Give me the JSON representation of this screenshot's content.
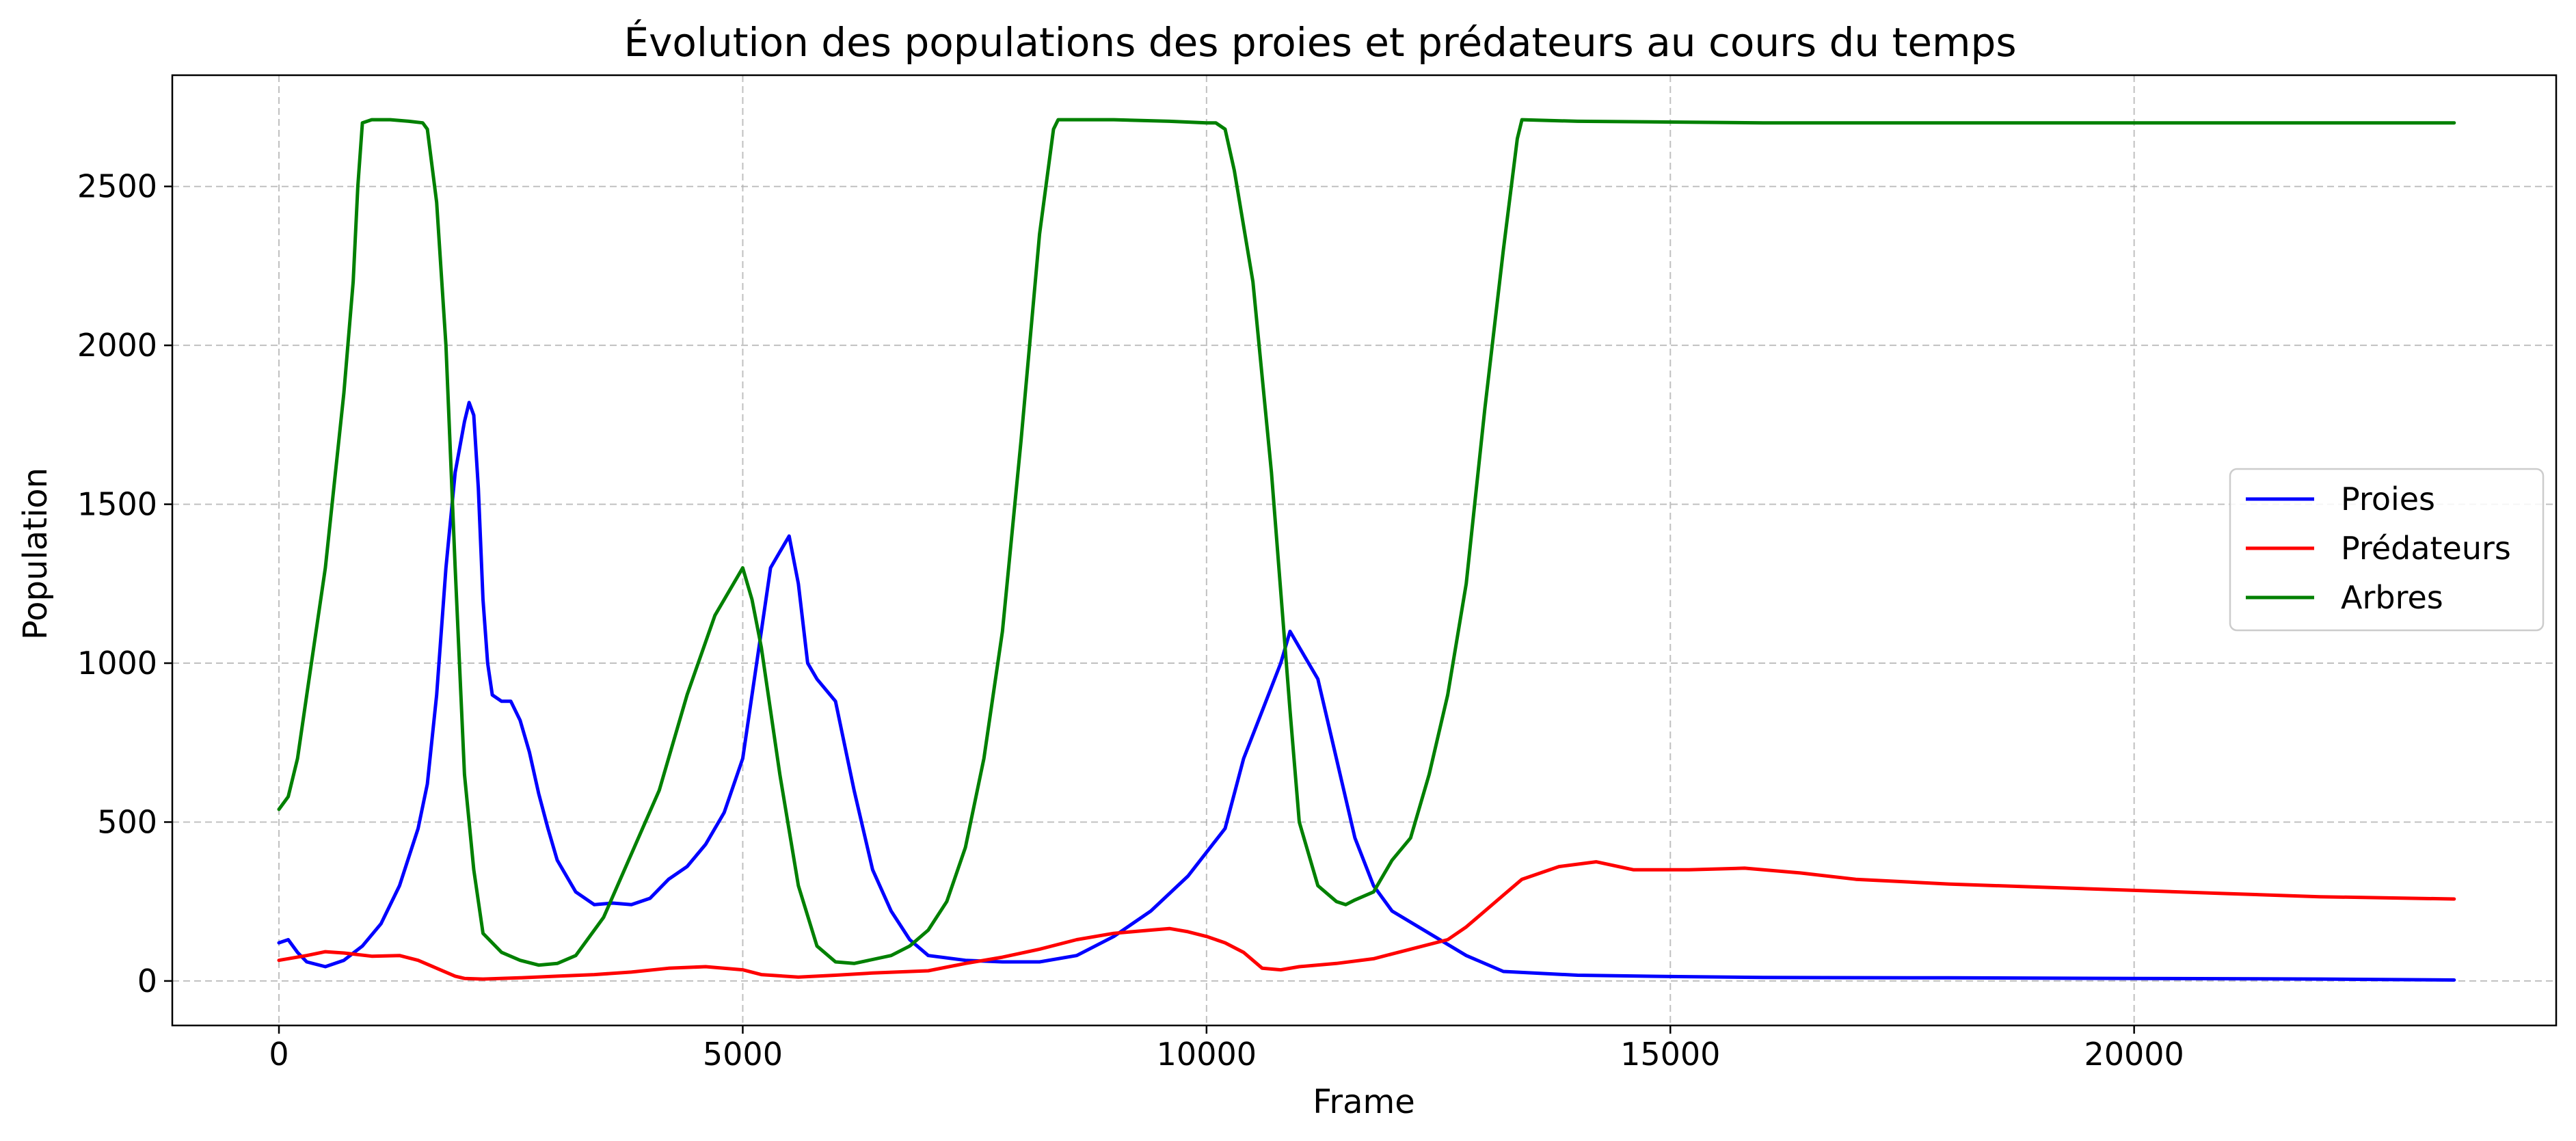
{
  "chart_data": {
    "type": "line",
    "title": "Évolution des populations des proies et prédateurs au cours du temps",
    "xlabel": "Frame",
    "ylabel": "Population",
    "xlim": [
      -1150,
      24550
    ],
    "ylim": [
      -140,
      2850
    ],
    "xticks": [
      0,
      5000,
      10000,
      15000,
      20000
    ],
    "yticks": [
      0,
      500,
      1000,
      1500,
      2000,
      2500
    ],
    "grid": true,
    "legend_position": "center-right",
    "series": [
      {
        "name": "Proies",
        "color": "#0000ff",
        "x": [
          0,
          100,
          200,
          300,
          500,
          700,
          900,
          1100,
          1300,
          1500,
          1600,
          1700,
          1800,
          1900,
          2000,
          2050,
          2100,
          2150,
          2200,
          2250,
          2300,
          2400,
          2500,
          2600,
          2700,
          2800,
          2900,
          3000,
          3200,
          3400,
          3600,
          3800,
          4000,
          4200,
          4400,
          4600,
          4800,
          5000,
          5100,
          5200,
          5300,
          5400,
          5500,
          5600,
          5700,
          5800,
          6000,
          6200,
          6400,
          6600,
          6800,
          7000,
          7400,
          7800,
          8200,
          8600,
          9000,
          9400,
          9800,
          10200,
          10400,
          10600,
          10800,
          10900,
          11000,
          11200,
          11400,
          11600,
          11800,
          12000,
          12400,
          12800,
          13200,
          14000,
          15000,
          16000,
          18000,
          20000,
          22000,
          23450
        ],
        "y": [
          120,
          130,
          90,
          60,
          45,
          65,
          110,
          180,
          300,
          480,
          620,
          900,
          1300,
          1600,
          1760,
          1820,
          1780,
          1550,
          1200,
          1000,
          900,
          880,
          880,
          820,
          720,
          590,
          480,
          380,
          280,
          240,
          245,
          240,
          260,
          320,
          360,
          430,
          530,
          700,
          900,
          1100,
          1300,
          1350,
          1400,
          1250,
          1000,
          950,
          880,
          600,
          350,
          220,
          130,
          80,
          65,
          60,
          60,
          80,
          140,
          220,
          330,
          480,
          700,
          850,
          1000,
          1100,
          1050,
          950,
          700,
          450,
          300,
          220,
          150,
          80,
          30,
          18,
          14,
          11,
          10,
          8,
          6,
          3
        ]
      },
      {
        "name": "Prédateurs",
        "color": "#ff0000",
        "x": [
          0,
          300,
          500,
          700,
          1000,
          1300,
          1500,
          1700,
          1900,
          2000,
          2200,
          2600,
          3000,
          3400,
          3800,
          4200,
          4600,
          5000,
          5200,
          5600,
          6000,
          6400,
          7000,
          7400,
          7800,
          8200,
          8600,
          9000,
          9400,
          9600,
          9800,
          10000,
          10200,
          10400,
          10600,
          10800,
          11000,
          11400,
          11800,
          12200,
          12600,
          12800,
          13000,
          13200,
          13400,
          13800,
          14200,
          14600,
          15200,
          15800,
          16400,
          17000,
          18000,
          19000,
          20000,
          21000,
          22000,
          23450
        ],
        "y": [
          65,
          80,
          92,
          88,
          78,
          80,
          65,
          40,
          15,
          8,
          6,
          10,
          15,
          20,
          28,
          40,
          45,
          35,
          20,
          12,
          18,
          25,
          32,
          55,
          75,
          100,
          130,
          150,
          160,
          165,
          155,
          140,
          120,
          90,
          40,
          35,
          45,
          55,
          70,
          100,
          130,
          170,
          220,
          270,
          320,
          360,
          375,
          350,
          350,
          355,
          340,
          320,
          305,
          295,
          285,
          275,
          265,
          258
        ]
      },
      {
        "name": "Arbres",
        "color": "#008000",
        "x": [
          0,
          100,
          200,
          300,
          500,
          700,
          800,
          850,
          900,
          1000,
          1200,
          1400,
          1550,
          1600,
          1700,
          1800,
          1900,
          2000,
          2100,
          2200,
          2400,
          2600,
          2800,
          3000,
          3200,
          3500,
          3800,
          4100,
          4400,
          4700,
          4900,
          5000,
          5100,
          5200,
          5400,
          5600,
          5800,
          6000,
          6200,
          6600,
          6800,
          7000,
          7200,
          7400,
          7600,
          7800,
          8000,
          8200,
          8350,
          8400,
          9000,
          9600,
          10000,
          10100,
          10200,
          10300,
          10500,
          10700,
          10900,
          11000,
          11200,
          11400,
          11500,
          11600,
          11800,
          12000,
          12200,
          12400,
          12600,
          12800,
          13000,
          13200,
          13350,
          13400,
          14000,
          16000,
          18000,
          20000,
          22000,
          23450
        ],
        "y": [
          540,
          580,
          700,
          900,
          1300,
          1850,
          2200,
          2500,
          2700,
          2710,
          2710,
          2705,
          2700,
          2680,
          2450,
          2000,
          1300,
          650,
          350,
          150,
          90,
          65,
          50,
          55,
          80,
          200,
          400,
          600,
          900,
          1150,
          1250,
          1300,
          1200,
          1050,
          650,
          300,
          110,
          60,
          55,
          80,
          110,
          160,
          250,
          420,
          700,
          1100,
          1700,
          2350,
          2680,
          2710,
          2710,
          2705,
          2700,
          2700,
          2680,
          2550,
          2200,
          1600,
          850,
          500,
          300,
          250,
          240,
          255,
          280,
          380,
          450,
          650,
          900,
          1250,
          1800,
          2300,
          2650,
          2710,
          2705,
          2700,
          2700,
          2700,
          2700,
          2700
        ]
      }
    ]
  }
}
